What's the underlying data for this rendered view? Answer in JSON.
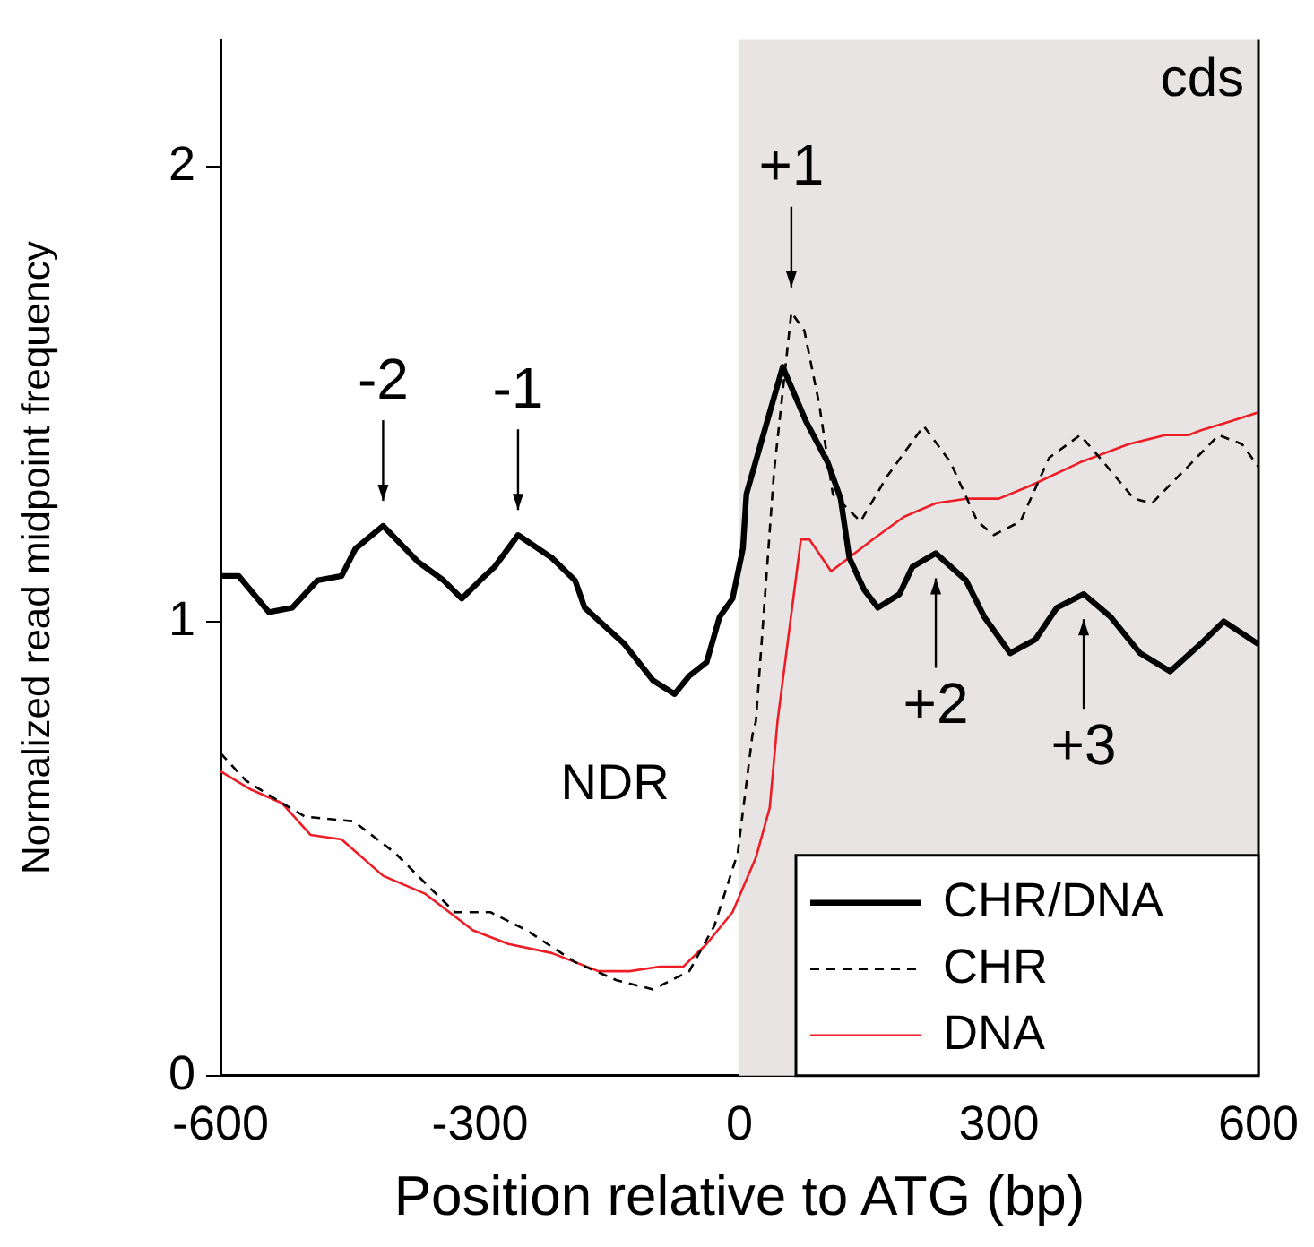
{
  "chart_data": {
    "type": "line",
    "xlabel": "Position relative to ATG (bp)",
    "ylabel": "Normalized read midpoint frequency",
    "xlim": [
      -600,
      600
    ],
    "xticks": [
      -600,
      -300,
      0,
      300,
      600
    ],
    "ylim": [
      0,
      2.28
    ],
    "yticks": [
      0,
      1,
      2
    ],
    "grid": false,
    "legend": "bottom right",
    "marker": "none",
    "series": [
      {
        "name": "CHR/DNA",
        "color": "#000000",
        "line_style": "solid",
        "x": [
          -600,
          -579,
          -544,
          -517,
          -488,
          -460,
          -444,
          -412,
          -371,
          -342,
          -321,
          -300,
          -283,
          -256,
          -217,
          -190,
          -179,
          -133,
          -100,
          -75,
          -58,
          -38,
          -23,
          -8,
          4,
          8,
          50,
          77,
          102,
          117,
          127,
          144,
          160,
          185,
          200,
          227,
          262,
          283,
          313,
          342,
          367,
          398,
          429,
          463,
          498,
          533,
          560,
          600
        ],
        "values": [
          1.1,
          1.1,
          1.02,
          1.03,
          1.09,
          1.1,
          1.16,
          1.21,
          1.13,
          1.09,
          1.05,
          1.09,
          1.12,
          1.19,
          1.14,
          1.09,
          1.03,
          0.95,
          0.87,
          0.84,
          0.88,
          0.91,
          1.01,
          1.05,
          1.16,
          1.28,
          1.56,
          1.44,
          1.35,
          1.27,
          1.14,
          1.07,
          1.03,
          1.06,
          1.12,
          1.15,
          1.09,
          1.01,
          0.93,
          0.96,
          1.03,
          1.06,
          1.01,
          0.93,
          0.89,
          0.95,
          1.0,
          0.95
        ]
      },
      {
        "name": "CHR",
        "color": "#000000",
        "line_style": "dashed",
        "x": [
          -600,
          -571,
          -529,
          -502,
          -446,
          -398,
          -356,
          -329,
          -288,
          -246,
          -190,
          -142,
          -100,
          -58,
          -29,
          -2,
          15,
          19,
          40,
          60,
          75,
          92,
          108,
          140,
          171,
          213,
          244,
          275,
          294,
          325,
          358,
          394,
          421,
          456,
          477,
          513,
          554,
          581,
          600
        ],
        "values": [
          0.71,
          0.65,
          0.6,
          0.57,
          0.56,
          0.49,
          0.41,
          0.36,
          0.36,
          0.32,
          0.25,
          0.21,
          0.19,
          0.23,
          0.33,
          0.49,
          0.75,
          0.78,
          1.33,
          1.68,
          1.64,
          1.48,
          1.28,
          1.22,
          1.32,
          1.43,
          1.35,
          1.22,
          1.19,
          1.22,
          1.36,
          1.41,
          1.35,
          1.27,
          1.26,
          1.33,
          1.41,
          1.39,
          1.34
        ]
      },
      {
        "name": "DNA",
        "color": "#ee1c25",
        "line_style": "solid",
        "x": [
          -600,
          -565,
          -529,
          -496,
          -460,
          -412,
          -363,
          -308,
          -267,
          -217,
          -163,
          -127,
          -92,
          -65,
          -38,
          -8,
          19,
          35,
          44,
          71,
          81,
          106,
          154,
          190,
          227,
          262,
          300,
          338,
          394,
          450,
          492,
          519,
          533,
          567,
          600
        ],
        "values": [
          0.67,
          0.63,
          0.6,
          0.53,
          0.52,
          0.44,
          0.4,
          0.32,
          0.29,
          0.27,
          0.23,
          0.23,
          0.24,
          0.24,
          0.29,
          0.36,
          0.48,
          0.59,
          0.78,
          1.18,
          1.18,
          1.11,
          1.18,
          1.23,
          1.26,
          1.27,
          1.27,
          1.3,
          1.35,
          1.39,
          1.41,
          1.41,
          1.42,
          1.44,
          1.46
        ]
      }
    ],
    "bands": [
      {
        "axis": "x",
        "from": 0,
        "to": 600,
        "label": "cds",
        "color": "#e8e4e4"
      }
    ],
    "annotations": [
      {
        "text": "-2",
        "x": -412,
        "y": 1.21
      },
      {
        "text": "-1",
        "x": -256,
        "y": 1.19
      },
      {
        "text": "+1",
        "x": 60,
        "y": 1.68
      },
      {
        "text": "+2",
        "x": 227,
        "y": 1.15
      },
      {
        "text": "+3",
        "x": 398,
        "y": 1.06
      },
      "NDR"
    ]
  }
}
